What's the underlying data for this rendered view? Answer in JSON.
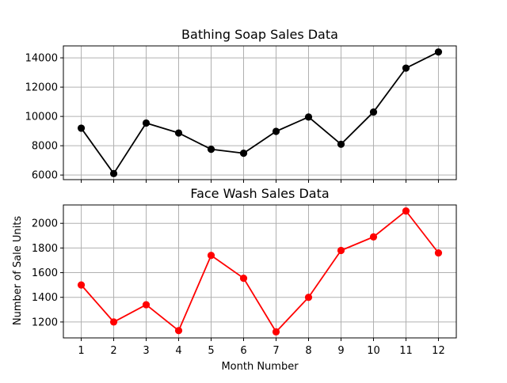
{
  "chart_data": [
    {
      "type": "line",
      "title": "Bathing Soap Sales Data",
      "xlabel": "",
      "ylabel": "",
      "x": [
        1,
        2,
        3,
        4,
        5,
        6,
        7,
        8,
        9,
        10,
        11,
        12
      ],
      "series": [
        {
          "values": [
            9200,
            6100,
            9550,
            8870,
            7760,
            7490,
            8980,
            9960,
            8100,
            10300,
            13300,
            14400
          ]
        }
      ],
      "xlim": [
        0.45,
        12.55
      ],
      "ylim": [
        5685,
        14815
      ],
      "yticks": [
        6000,
        8000,
        10000,
        12000,
        14000
      ],
      "show_x_tick_labels": false,
      "grid": true,
      "line_color": "#000000",
      "marker": "circle"
    },
    {
      "type": "line",
      "title": "Face Wash Sales Data",
      "xlabel": "Month Number",
      "ylabel": "Number of Sale Units",
      "x": [
        1,
        2,
        3,
        4,
        5,
        6,
        7,
        8,
        9,
        10,
        11,
        12
      ],
      "series": [
        {
          "values": [
            1500,
            1200,
            1340,
            1130,
            1740,
            1555,
            1120,
            1400,
            1780,
            1890,
            2100,
            1760
          ]
        }
      ],
      "xlim": [
        0.45,
        12.55
      ],
      "ylim": [
        1071,
        2149
      ],
      "yticks": [
        1200,
        1400,
        1600,
        1800,
        2000
      ],
      "xticks": [
        1,
        2,
        3,
        4,
        5,
        6,
        7,
        8,
        9,
        10,
        11,
        12
      ],
      "show_x_tick_labels": true,
      "grid": true,
      "line_color": "#ff0000",
      "marker": "circle"
    }
  ]
}
